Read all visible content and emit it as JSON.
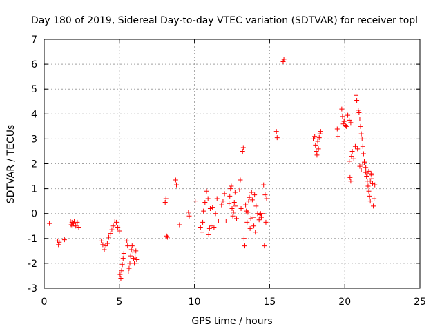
{
  "chart_data": {
    "type": "scatter",
    "title": "Day 180 of 2019, Sidereal Day-to-day VTEC variation (SDTVAR) for receiver topl",
    "xlabel": "GPS time / hours",
    "ylabel": "SDTVAR / TECUs",
    "xlim": [
      0,
      25
    ],
    "ylim": [
      -3,
      7
    ],
    "xticks": [
      0,
      5,
      10,
      15,
      20,
      25
    ],
    "yticks": [
      -3,
      -2,
      -1,
      0,
      1,
      2,
      3,
      4,
      5,
      6,
      7
    ],
    "grid": true,
    "marker": "plus",
    "color": "#ff0000",
    "series": [
      {
        "name": "SDTVAR",
        "x": [
          0.35,
          0.9,
          0.95,
          1.0,
          1.35,
          1.75,
          1.8,
          1.85,
          1.9,
          1.95,
          2.0,
          2.1,
          2.2,
          2.3,
          3.8,
          3.9,
          4.0,
          4.1,
          4.2,
          4.3,
          4.4,
          4.5,
          4.6,
          4.7,
          4.8,
          4.9,
          5.0,
          5.05,
          5.1,
          5.15,
          5.2,
          5.25,
          5.3,
          5.5,
          5.55,
          5.6,
          5.65,
          5.7,
          5.75,
          5.8,
          5.85,
          5.9,
          5.95,
          6.0,
          6.05,
          6.1,
          6.15,
          8.05,
          8.1,
          8.15,
          8.2,
          8.75,
          8.8,
          9.0,
          9.6,
          9.65,
          10.05,
          10.4,
          10.5,
          10.55,
          10.6,
          10.7,
          10.8,
          10.9,
          10.95,
          11.0,
          11.05,
          11.1,
          11.2,
          11.3,
          11.4,
          11.5,
          11.6,
          11.8,
          11.9,
          12.0,
          12.1,
          12.3,
          12.35,
          12.4,
          12.45,
          12.5,
          12.55,
          12.6,
          12.65,
          12.7,
          12.75,
          12.8,
          13.0,
          13.05,
          13.1,
          13.2,
          13.25,
          13.3,
          13.35,
          13.4,
          13.45,
          13.5,
          13.55,
          13.6,
          13.65,
          13.7,
          13.75,
          13.8,
          13.85,
          13.9,
          13.95,
          14.0,
          14.05,
          14.1,
          14.2,
          14.3,
          14.35,
          14.4,
          14.45,
          14.5,
          14.6,
          14.65,
          14.7,
          14.75,
          14.8,
          15.45,
          15.5,
          15.9,
          15.95,
          17.9,
          18.0,
          18.05,
          18.1,
          18.15,
          18.2,
          18.25,
          18.3,
          18.35,
          18.4,
          19.5,
          19.55,
          19.8,
          19.85,
          19.9,
          19.95,
          20.0,
          20.05,
          20.1,
          20.2,
          20.3,
          20.4,
          20.3,
          20.35,
          20.4,
          20.45,
          20.5,
          20.6,
          20.7,
          20.75,
          20.8,
          20.85,
          20.9,
          20.95,
          21.0,
          21.05,
          21.1,
          21.15,
          21.2,
          21.25,
          21.3,
          21.35,
          21.4,
          21.45,
          21.5,
          21.55,
          21.6,
          21.65,
          21.7,
          21.75,
          21.8,
          21.85,
          21.9,
          21.95,
          22.0,
          21.0,
          21.1,
          21.2,
          21.3,
          21.4,
          21.5,
          21.6,
          21.7,
          21.8
        ],
        "y": [
          -0.4,
          -1.1,
          -1.25,
          -1.15,
          -1.05,
          -0.3,
          -0.45,
          -0.35,
          -0.5,
          -0.4,
          -0.3,
          -0.5,
          -0.35,
          -0.55,
          -1.1,
          -1.25,
          -1.45,
          -1.3,
          -1.2,
          -0.95,
          -0.8,
          -0.65,
          -0.5,
          -0.3,
          -0.35,
          -0.55,
          -0.7,
          -2.45,
          -2.6,
          -2.3,
          -2.05,
          -1.8,
          -1.6,
          -1.1,
          -1.3,
          -2.35,
          -2.2,
          -2.0,
          -1.7,
          -1.45,
          -1.3,
          -1.55,
          -1.8,
          -2.0,
          -1.75,
          -1.5,
          -1.85,
          0.45,
          0.6,
          -0.9,
          -0.95,
          1.35,
          1.15,
          -0.45,
          0.05,
          -0.1,
          0.5,
          -0.55,
          -0.75,
          -0.35,
          0.1,
          0.45,
          0.9,
          0.6,
          -0.85,
          -0.6,
          0.2,
          -0.5,
          0.25,
          -0.55,
          0.0,
          0.6,
          -0.3,
          0.35,
          0.5,
          0.8,
          -0.3,
          0.4,
          0.7,
          1.0,
          1.1,
          0.2,
          -0.1,
          0.05,
          0.45,
          0.85,
          0.3,
          -0.2,
          0.95,
          1.35,
          0.2,
          2.5,
          2.65,
          -1.0,
          -1.3,
          0.35,
          0.1,
          -0.35,
          0.05,
          0.5,
          0.65,
          -0.6,
          -0.2,
          0.85,
          0.55,
          -0.15,
          -0.5,
          0.75,
          -0.75,
          0.3,
          0.0,
          -0.25,
          -0.05,
          0.0,
          -0.15,
          0.0,
          1.15,
          -1.3,
          0.75,
          -0.35,
          0.6,
          3.3,
          3.05,
          6.1,
          6.2,
          3.0,
          3.1,
          2.75,
          2.5,
          2.35,
          2.9,
          2.6,
          3.05,
          3.2,
          3.3,
          3.4,
          3.1,
          4.2,
          3.9,
          3.6,
          3.7,
          3.8,
          3.55,
          3.5,
          3.95,
          3.75,
          3.65,
          2.1,
          1.45,
          1.3,
          2.3,
          2.5,
          2.2,
          2.7,
          4.75,
          4.55,
          2.6,
          4.15,
          4.05,
          3.8,
          3.5,
          3.2,
          3.0,
          2.7,
          2.4,
          2.1,
          1.85,
          1.65,
          1.5,
          1.3,
          1.1,
          0.9,
          0.7,
          0.5,
          1.6,
          1.4,
          1.2,
          0.3,
          0.6,
          1.15,
          1.9,
          1.75,
          1.95,
          2.05,
          1.85,
          1.6,
          1.7,
          1.3,
          1.55
        ]
      }
    ]
  }
}
